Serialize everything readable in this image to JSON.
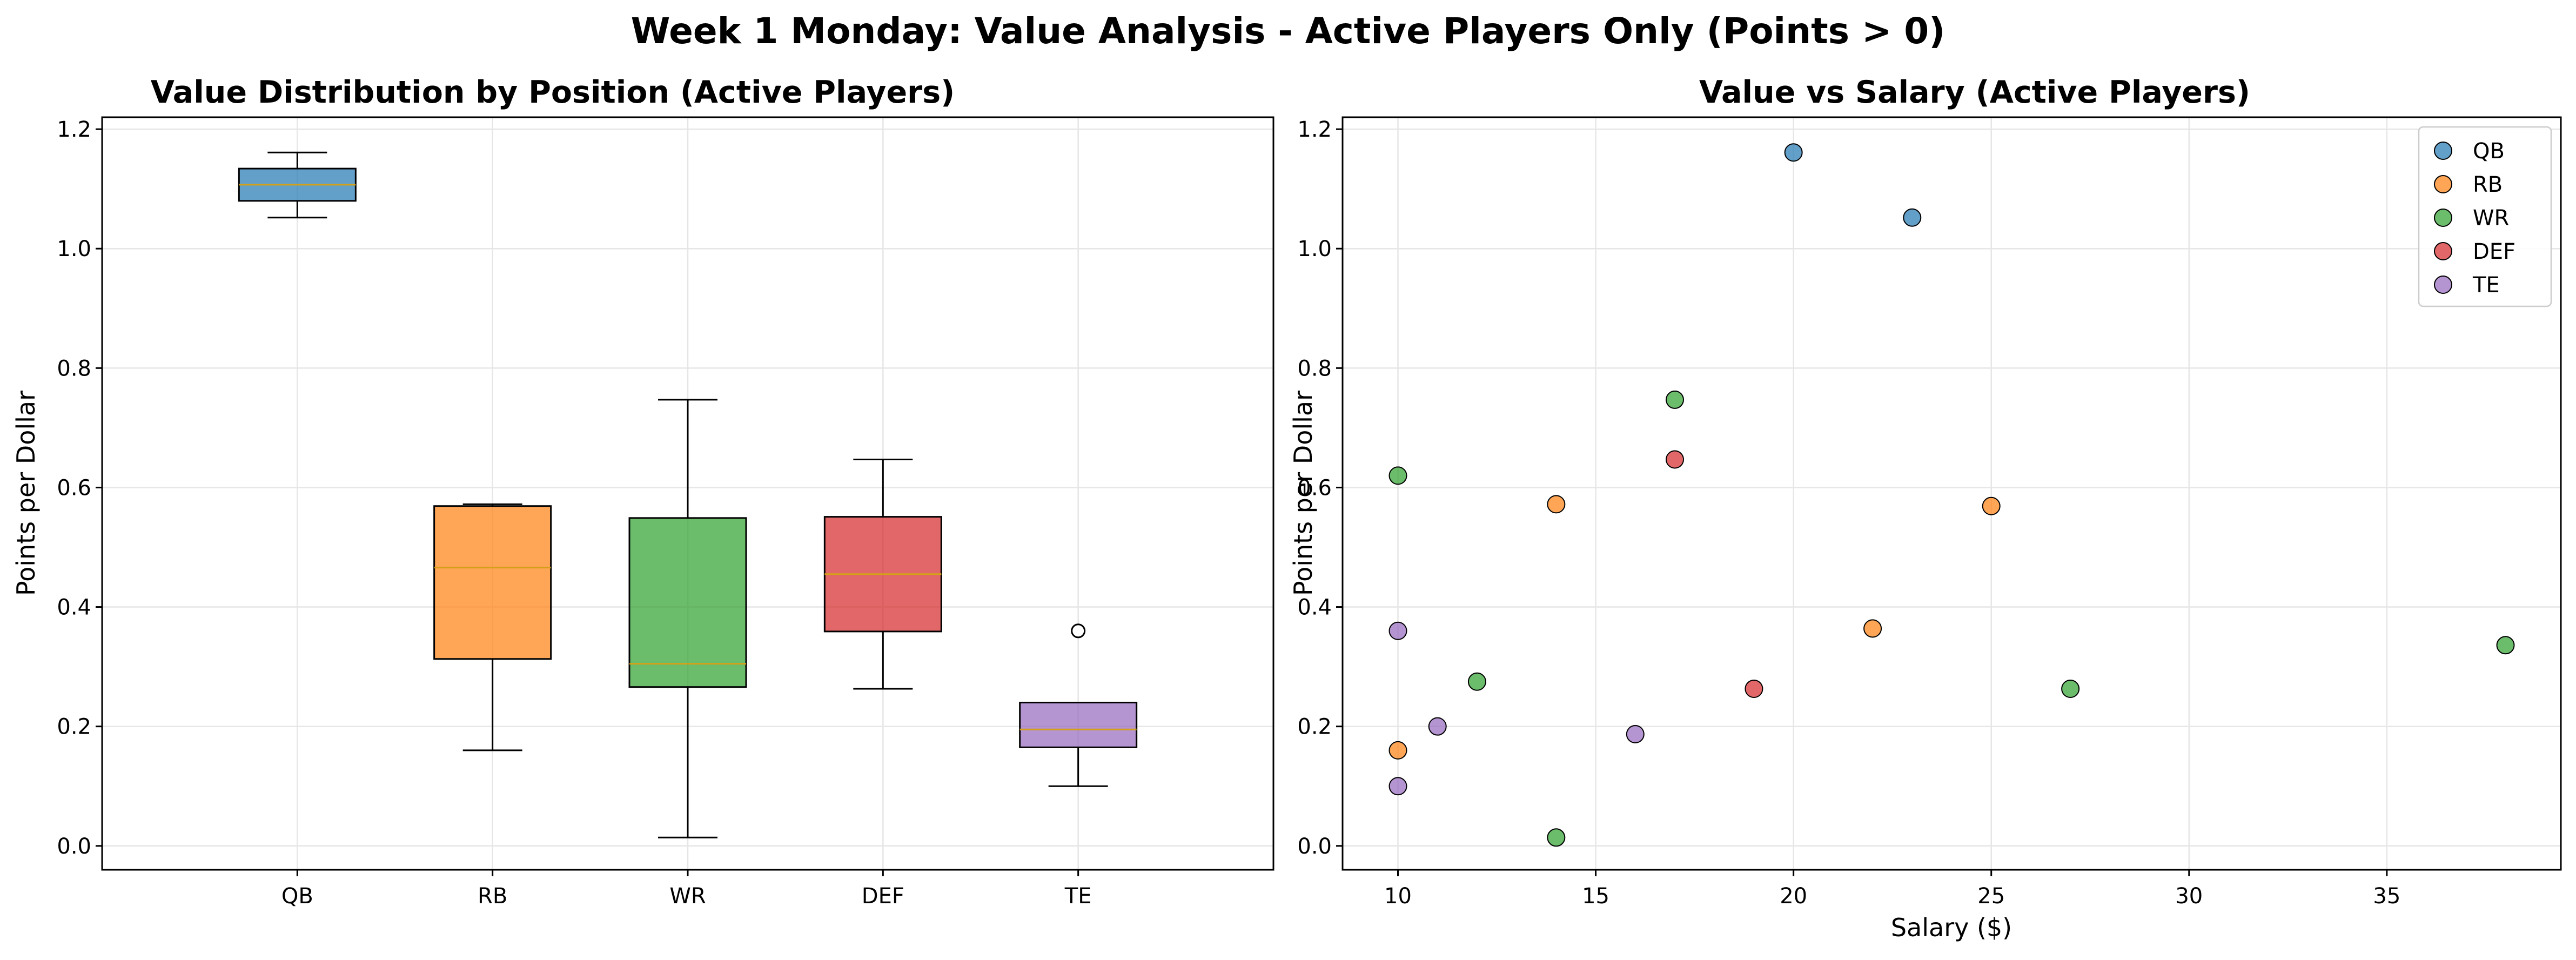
{
  "suptitle": "Week 1 Monday: Value Analysis - Active Players Only (Points > 0)",
  "colors": {
    "QB": "#1f77b4",
    "RB": "#ff7f0e",
    "WR": "#2ca02c",
    "DEF": "#d62728",
    "TE": "#9467bd",
    "median": "#d4a017",
    "grid": "#e6e6e6",
    "axis": "#000000"
  },
  "chart_data": [
    {
      "type": "box",
      "title": "Value Distribution by Position (Active Players)",
      "xlabel": "",
      "ylabel": "Points per Dollar",
      "ylim": [
        -0.04,
        1.22
      ],
      "yticks": [
        0.0,
        0.2,
        0.4,
        0.6,
        0.8,
        1.0,
        1.2
      ],
      "ytick_labels": [
        "0.0",
        "0.2",
        "0.4",
        "0.6",
        "0.8",
        "1.0",
        "1.2"
      ],
      "categories": [
        "QB",
        "RB",
        "WR",
        "DEF",
        "TE"
      ],
      "grid": true,
      "boxes": [
        {
          "category": "QB",
          "whisker_low": 1.052,
          "q1": 1.08,
          "median": 1.107,
          "q3": 1.134,
          "whisker_high": 1.161,
          "outliers": []
        },
        {
          "category": "RB",
          "whisker_low": 0.16,
          "q1": 0.313,
          "median": 0.466,
          "q3": 0.569,
          "whisker_high": 0.572,
          "outliers": []
        },
        {
          "category": "WR",
          "whisker_low": 0.014,
          "q1": 0.266,
          "median": 0.305,
          "q3": 0.549,
          "whisker_high": 0.747,
          "outliers": []
        },
        {
          "category": "DEF",
          "whisker_low": 0.263,
          "q1": 0.359,
          "median": 0.455,
          "q3": 0.551,
          "whisker_high": 0.647,
          "outliers": []
        },
        {
          "category": "TE",
          "whisker_low": 0.1,
          "q1": 0.165,
          "median": 0.195,
          "q3": 0.24,
          "whisker_high": 0.24,
          "outliers": [
            0.36
          ]
        }
      ]
    },
    {
      "type": "scatter",
      "title": "Value vs Salary (Active Players)",
      "xlabel": "Salary ($)",
      "ylabel": "Points per Dollar",
      "xlim": [
        8.6,
        39.4
      ],
      "ylim": [
        -0.04,
        1.22
      ],
      "xticks": [
        10,
        15,
        20,
        25,
        30,
        35
      ],
      "xtick_labels": [
        "10",
        "15",
        "20",
        "25",
        "30",
        "35"
      ],
      "yticks": [
        0.0,
        0.2,
        0.4,
        0.6,
        0.8,
        1.0,
        1.2
      ],
      "ytick_labels": [
        "0.0",
        "0.2",
        "0.4",
        "0.6",
        "0.8",
        "1.0",
        "1.2"
      ],
      "grid": true,
      "legend_position": "top-right",
      "series": [
        {
          "name": "QB",
          "points": [
            [
              20,
              1.161
            ],
            [
              23,
              1.052
            ]
          ]
        },
        {
          "name": "RB",
          "points": [
            [
              14,
              0.572
            ],
            [
              25,
              0.569
            ],
            [
              22,
              0.364
            ],
            [
              10,
              0.16
            ]
          ]
        },
        {
          "name": "WR",
          "points": [
            [
              17,
              0.747
            ],
            [
              10,
              0.62
            ],
            [
              38,
              0.336
            ],
            [
              12,
              0.275
            ],
            [
              27,
              0.263
            ],
            [
              14,
              0.014
            ]
          ]
        },
        {
          "name": "DEF",
          "points": [
            [
              17,
              0.647
            ],
            [
              19,
              0.263
            ]
          ]
        },
        {
          "name": "TE",
          "points": [
            [
              10,
              0.36
            ],
            [
              11,
              0.2
            ],
            [
              16,
              0.187
            ],
            [
              10,
              0.1
            ]
          ]
        }
      ]
    }
  ]
}
